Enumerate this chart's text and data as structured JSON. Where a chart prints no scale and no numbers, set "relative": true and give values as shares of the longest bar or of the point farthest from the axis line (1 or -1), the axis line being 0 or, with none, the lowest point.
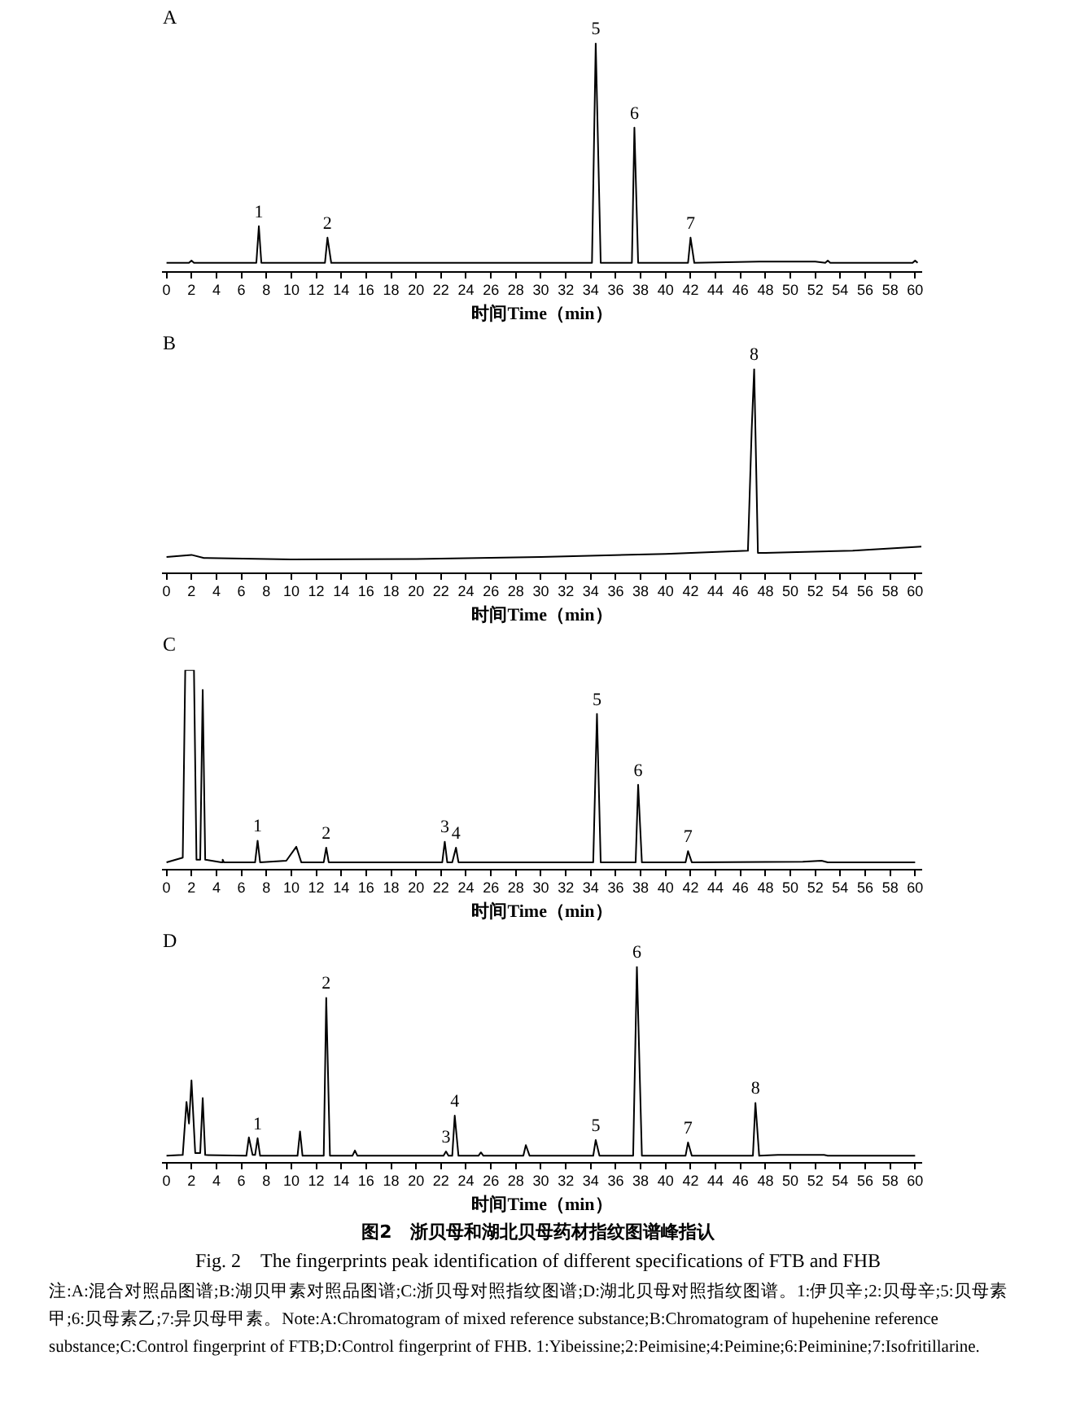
{
  "chart_data": [
    {
      "type": "line",
      "title": "A",
      "xlabel": "时间Time（min）",
      "relative": true,
      "color": "#000000",
      "xlim": [
        -0.3,
        60.5
      ],
      "xticks": [
        0,
        2,
        4,
        6,
        8,
        10,
        12,
        14,
        16,
        18,
        20,
        22,
        24,
        26,
        28,
        30,
        32,
        34,
        36,
        38,
        40,
        42,
        44,
        46,
        48,
        50,
        52,
        54,
        56,
        58,
        60
      ],
      "x": [
        0,
        1.8,
        2,
        2.2,
        7.2,
        7.4,
        7.6,
        12.7,
        12.9,
        13.2,
        34.1,
        34.4,
        34.8,
        37.3,
        37.5,
        37.8,
        41.8,
        42,
        42.3,
        47.5,
        52,
        52.8,
        53,
        53.2,
        59.8,
        60,
        60.2
      ],
      "values": [
        0.04,
        0.04,
        0.05,
        0.04,
        0.04,
        0.2,
        0.04,
        0.04,
        0.15,
        0.04,
        0.04,
        1,
        0.04,
        0.04,
        0.63,
        0.04,
        0.04,
        0.15,
        0.04,
        0.045,
        0.045,
        0.04,
        0.05,
        0.04,
        0.04,
        0.05,
        0.04
      ],
      "annotations": [
        {
          "text": "1",
          "x": 7.4,
          "y": 0.2
        },
        {
          "text": "2",
          "x": 12.9,
          "y": 0.15
        },
        {
          "text": "5",
          "x": 34.4,
          "y": 1
        },
        {
          "text": "6",
          "x": 37.5,
          "y": 0.63
        },
        {
          "text": "7",
          "x": 42,
          "y": 0.15
        }
      ]
    },
    {
      "type": "line",
      "title": "B",
      "xlabel": "时间Time（min）",
      "relative": true,
      "color": "#000000",
      "xlim": [
        -0.3,
        60.5
      ],
      "xticks": [
        0,
        2,
        4,
        6,
        8,
        10,
        12,
        14,
        16,
        18,
        20,
        22,
        24,
        26,
        28,
        30,
        32,
        34,
        36,
        38,
        40,
        42,
        44,
        46,
        48,
        50,
        52,
        54,
        56,
        58,
        60
      ],
      "x": [
        0,
        2,
        3,
        10,
        20,
        30,
        40,
        46.6,
        46.9,
        47.1,
        47.4,
        48,
        55,
        60.5
      ],
      "values": [
        0.08,
        0.09,
        0.075,
        0.068,
        0.07,
        0.08,
        0.095,
        0.11,
        0.7,
        1,
        0.1,
        0.1,
        0.11,
        0.13
      ],
      "annotations": [
        {
          "text": "8",
          "x": 47.1,
          "y": 1
        }
      ]
    },
    {
      "type": "line",
      "title": "C",
      "xlabel": "时间Time（min）",
      "relative": true,
      "color": "#000000",
      "xlim": [
        -0.3,
        60.5
      ],
      "xticks": [
        0,
        2,
        4,
        6,
        8,
        10,
        12,
        14,
        16,
        18,
        20,
        22,
        24,
        26,
        28,
        30,
        32,
        34,
        36,
        38,
        40,
        42,
        44,
        46,
        48,
        50,
        52,
        54,
        56,
        58,
        60
      ],
      "x": [
        0,
        1.3,
        1.5,
        2.2,
        2.4,
        2.7,
        2.9,
        3.1,
        4.4,
        4.5,
        4.6,
        7.1,
        7.3,
        7.5,
        9.6,
        10.4,
        10.8,
        12.6,
        12.8,
        13.0,
        22.1,
        22.3,
        22.5,
        22.9,
        23.2,
        23.4,
        34.2,
        34.5,
        34.8,
        37.6,
        37.8,
        38.1,
        41.6,
        41.8,
        42.1,
        51,
        52.5,
        53,
        60
      ],
      "values": [
        0.037,
        0.06,
        1,
        1,
        0.05,
        0.05,
        0.9,
        0.05,
        0.037,
        0.05,
        0.037,
        0.037,
        0.145,
        0.037,
        0.045,
        0.115,
        0.037,
        0.037,
        0.11,
        0.037,
        0.037,
        0.14,
        0.037,
        0.037,
        0.11,
        0.037,
        0.037,
        0.78,
        0.037,
        0.037,
        0.425,
        0.037,
        0.037,
        0.093,
        0.037,
        0.04,
        0.045,
        0.037,
        0.037
      ],
      "annotations": [
        {
          "text": "1",
          "x": 7.3,
          "y": 0.145
        },
        {
          "text": "2",
          "x": 12.8,
          "y": 0.11
        },
        {
          "text": "3",
          "x": 22.3,
          "y": 0.14
        },
        {
          "text": "4",
          "x": 23.2,
          "y": 0.11
        },
        {
          "text": "5",
          "x": 34.5,
          "y": 0.78
        },
        {
          "text": "6",
          "x": 37.8,
          "y": 0.425
        },
        {
          "text": "7",
          "x": 41.8,
          "y": 0.093
        }
      ]
    },
    {
      "type": "line",
      "title": "D",
      "xlabel": "时间Time（min）",
      "relative": true,
      "color": "#000000",
      "xlim": [
        -0.3,
        60.5
      ],
      "xticks": [
        0,
        2,
        4,
        6,
        8,
        10,
        12,
        14,
        16,
        18,
        20,
        22,
        24,
        26,
        28,
        30,
        32,
        34,
        36,
        38,
        40,
        42,
        44,
        46,
        48,
        50,
        52,
        54,
        56,
        58,
        60
      ],
      "x": [
        0,
        1.3,
        1.6,
        1.8,
        2.0,
        2.3,
        2.7,
        2.9,
        3.1,
        6.4,
        6.6,
        6.9,
        7.1,
        7.3,
        7.5,
        10.5,
        10.7,
        10.9,
        12.6,
        12.8,
        13.1,
        14.9,
        15.1,
        15.3,
        22.2,
        22.4,
        22.6,
        22.9,
        23.1,
        23.4,
        25,
        25.2,
        25.4,
        28.6,
        28.8,
        29.1,
        34.2,
        34.4,
        34.7,
        37.4,
        37.7,
        38.1,
        41.6,
        41.8,
        42.1,
        47,
        47.2,
        47.5,
        49,
        52.7,
        53,
        60
      ],
      "values": [
        0.036,
        0.04,
        0.31,
        0.2,
        0.42,
        0.05,
        0.05,
        0.33,
        0.04,
        0.036,
        0.13,
        0.04,
        0.04,
        0.125,
        0.036,
        0.036,
        0.16,
        0.036,
        0.036,
        0.84,
        0.036,
        0.036,
        0.063,
        0.036,
        0.036,
        0.058,
        0.036,
        0.036,
        0.24,
        0.036,
        0.036,
        0.053,
        0.036,
        0.036,
        0.09,
        0.036,
        0.036,
        0.116,
        0.036,
        0.036,
        1,
        0.036,
        0.036,
        0.104,
        0.036,
        0.036,
        0.305,
        0.036,
        0.04,
        0.04,
        0.036,
        0.036
      ],
      "annotations": [
        {
          "text": "1",
          "x": 7.3,
          "y": 0.125
        },
        {
          "text": "2",
          "x": 12.8,
          "y": 0.84
        },
        {
          "text": "3",
          "x": 22.4,
          "y": 0.058
        },
        {
          "text": "4",
          "x": 23.1,
          "y": 0.24
        },
        {
          "text": "5",
          "x": 34.4,
          "y": 0.116
        },
        {
          "text": "6",
          "x": 37.7,
          "y": 1
        },
        {
          "text": "7",
          "x": 41.8,
          "y": 0.104
        },
        {
          "text": "8",
          "x": 47.2,
          "y": 0.305
        },
        "图2　浙贝母和湖北贝母药材指纹图谱峰指认",
        "Fig. 2　The fingerprints peak identification of different specifications of FTB and FHB",
        "注:A:混合对照品图谱;B:湖贝甲素对照品图谱;C:浙贝母对照指纹图谱;D:湖北贝母对照指纹图谱。1:伊贝辛;2:贝母辛;5:贝母素甲;6:贝母素乙;7:异贝母甲素。Note:A:Chromatogram of mixed reference substance;B:Chromatogram of hupehenine reference substance;C:Control fingerprint of FTB;D:Control fingerprint of FHB. 1:Yibeissine;2:Peimisine;4:Peimine;6:Peiminine;7:Isofritillarine."
      ]
    }
  ]
}
